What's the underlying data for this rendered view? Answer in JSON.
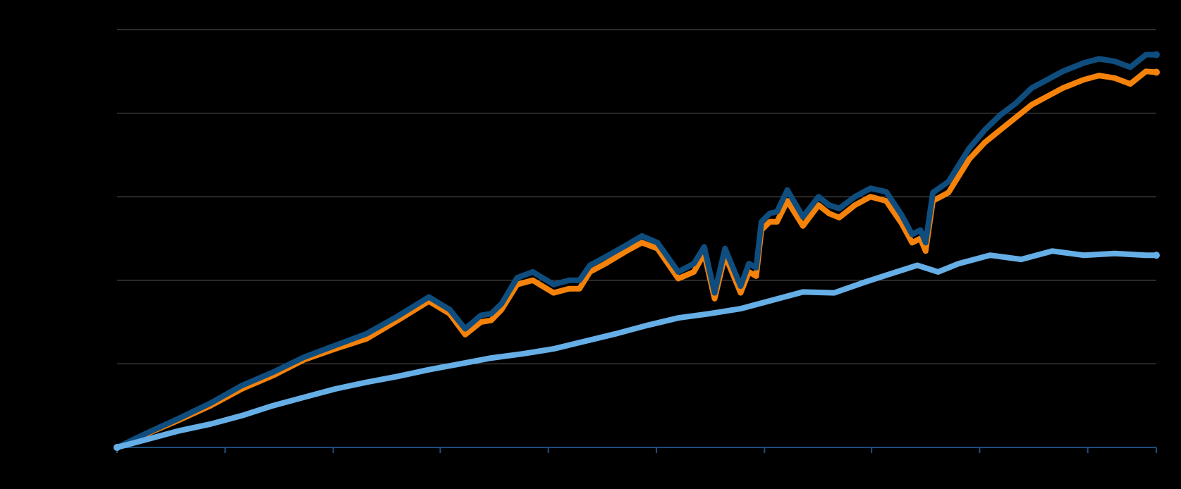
{
  "chart_data": {
    "type": "line",
    "title": "",
    "xlabel": "",
    "ylabel": "",
    "grid": true,
    "legend": "none",
    "xlim": [
      0,
      100
    ],
    "ylim": [
      0,
      5
    ],
    "y_grid_values": [
      0,
      1,
      2,
      3,
      4,
      5
    ],
    "x_tick_values": [
      0,
      10.4,
      20.8,
      31.1,
      41.5,
      51.9,
      62.3,
      72.6,
      83.0,
      93.4,
      100
    ],
    "series": [
      {
        "color": "#f5820a",
        "x": [
          0,
          3,
          6,
          9,
          12,
          15,
          18,
          21,
          24,
          27,
          30,
          32,
          33.5,
          35,
          36,
          37,
          38.5,
          40,
          42,
          43.5,
          44.5,
          45.5,
          47,
          49,
          50.5,
          52,
          54,
          55.5,
          56.5,
          57.5,
          58.5,
          60,
          60.8,
          61.5,
          62,
          62.8,
          63.5,
          64.5,
          66,
          67.5,
          68.5,
          69.5,
          71,
          72.5,
          74,
          75.5,
          76.5,
          77.3,
          77.8,
          78.5,
          80,
          82,
          83.5,
          85,
          86.5,
          88,
          89.5,
          91,
          92,
          93,
          94.5,
          96,
          97.5,
          99,
          100
        ],
        "values": [
          0.0,
          0.17,
          0.33,
          0.5,
          0.7,
          0.86,
          1.05,
          1.18,
          1.3,
          1.52,
          1.75,
          1.6,
          1.35,
          1.5,
          1.52,
          1.65,
          1.95,
          2.0,
          1.85,
          1.9,
          1.9,
          2.1,
          2.2,
          2.35,
          2.45,
          2.38,
          2.02,
          2.1,
          2.32,
          1.78,
          2.3,
          1.85,
          2.1,
          2.05,
          2.6,
          2.7,
          2.7,
          2.95,
          2.65,
          2.9,
          2.8,
          2.75,
          2.9,
          3.0,
          2.95,
          2.68,
          2.45,
          2.5,
          2.35,
          2.95,
          3.05,
          3.45,
          3.65,
          3.8,
          3.95,
          4.1,
          4.2,
          4.3,
          4.35,
          4.4,
          4.45,
          4.42,
          4.35,
          4.5,
          4.49
        ]
      },
      {
        "color": "#0e4d7e",
        "x": [
          0,
          3,
          6,
          9,
          12,
          15,
          18,
          21,
          24,
          27,
          30,
          32,
          33.5,
          35,
          36,
          37,
          38.5,
          40,
          42,
          43.5,
          44.5,
          45.5,
          47,
          49,
          50.5,
          52,
          54,
          55.5,
          56.5,
          57.5,
          58.5,
          60,
          60.8,
          61.5,
          62,
          62.8,
          63.5,
          64.5,
          66,
          67.5,
          68.5,
          69.5,
          71,
          72.5,
          74,
          75.5,
          76.5,
          77.3,
          77.8,
          78.5,
          80,
          82,
          83.5,
          85,
          86.5,
          88,
          89.5,
          91,
          92,
          93,
          94.5,
          96,
          97.5,
          99,
          100
        ],
        "values": [
          0.0,
          0.18,
          0.35,
          0.53,
          0.74,
          0.9,
          1.08,
          1.22,
          1.36,
          1.57,
          1.8,
          1.65,
          1.42,
          1.58,
          1.6,
          1.72,
          2.03,
          2.1,
          1.95,
          2.0,
          2.0,
          2.18,
          2.28,
          2.42,
          2.53,
          2.45,
          2.1,
          2.2,
          2.4,
          1.85,
          2.38,
          1.93,
          2.2,
          2.15,
          2.7,
          2.8,
          2.82,
          3.08,
          2.76,
          3.0,
          2.9,
          2.86,
          3.0,
          3.1,
          3.06,
          2.78,
          2.55,
          2.6,
          2.45,
          3.05,
          3.18,
          3.58,
          3.8,
          3.98,
          4.12,
          4.3,
          4.4,
          4.5,
          4.55,
          4.6,
          4.65,
          4.62,
          4.55,
          4.7,
          4.7
        ]
      },
      {
        "color": "#66aee6",
        "x": [
          0,
          3,
          6,
          9,
          12,
          15,
          18,
          21,
          24,
          27,
          30,
          33,
          36,
          39,
          42,
          45,
          48,
          51,
          54,
          57,
          60,
          63,
          66,
          69,
          72,
          75,
          77,
          79,
          81,
          84,
          87,
          90,
          93,
          96,
          99,
          100
        ],
        "values": [
          0.0,
          0.1,
          0.2,
          0.28,
          0.38,
          0.5,
          0.6,
          0.7,
          0.78,
          0.85,
          0.93,
          1.0,
          1.07,
          1.12,
          1.18,
          1.27,
          1.36,
          1.46,
          1.55,
          1.6,
          1.66,
          1.76,
          1.86,
          1.85,
          1.98,
          2.1,
          2.18,
          2.1,
          2.2,
          2.3,
          2.25,
          2.35,
          2.3,
          2.32,
          2.3,
          2.3
        ]
      }
    ]
  }
}
